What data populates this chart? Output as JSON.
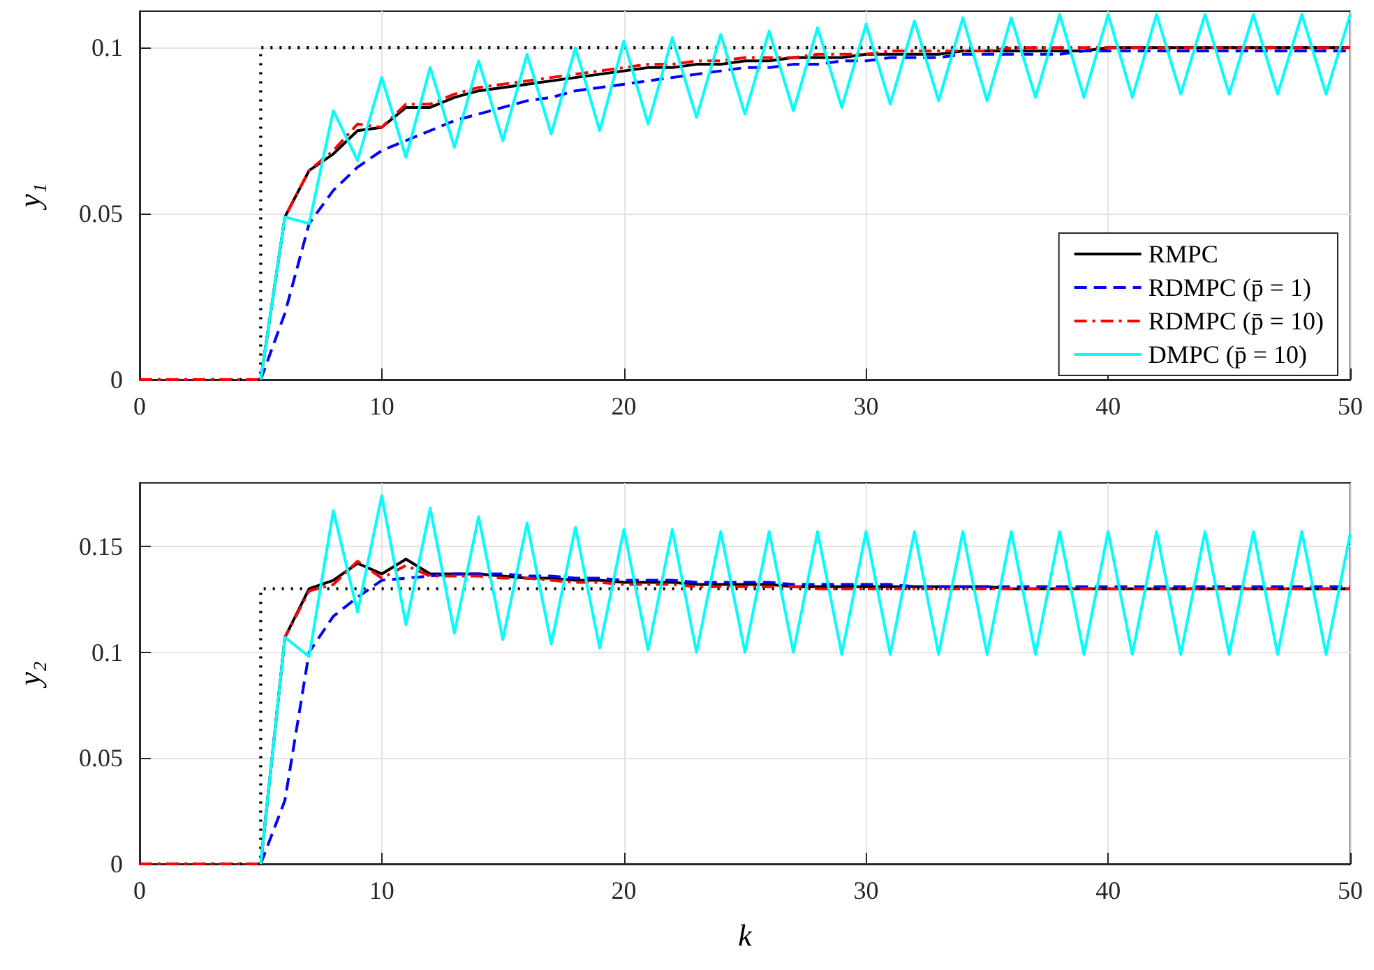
{
  "chart_data": [
    {
      "type": "line",
      "ylabel": "y₁",
      "xlim": [
        0,
        50
      ],
      "xticks": [
        0,
        10,
        20,
        30,
        40,
        50
      ],
      "ylim": [
        0,
        0.111
      ],
      "yticks": [
        0,
        0.05,
        0.1
      ],
      "grid": true,
      "legend": "bottom right",
      "marker": "none",
      "x": [
        0,
        1,
        2,
        3,
        4,
        5,
        6,
        7,
        8,
        9,
        10,
        11,
        12,
        13,
        14,
        15,
        16,
        17,
        18,
        19,
        20,
        21,
        22,
        23,
        24,
        25,
        26,
        27,
        28,
        29,
        30,
        31,
        32,
        33,
        34,
        35,
        36,
        37,
        38,
        39,
        40,
        41,
        42,
        43,
        44,
        45,
        46,
        47,
        48,
        49,
        50
      ],
      "series": [
        {
          "x": [
            0,
            5,
            5,
            50
          ],
          "values": [
            0,
            0,
            0.1,
            0.1
          ],
          "color": "#000000",
          "line_style": "dotted"
        },
        {
          "name": "RMPC",
          "color": "#000000",
          "line_style": "solid",
          "values": [
            null,
            null,
            null,
            null,
            null,
            0,
            0.049,
            0.063,
            0.068,
            0.075,
            0.076,
            0.082,
            0.082,
            0.085,
            0.087,
            0.088,
            0.089,
            0.09,
            0.091,
            0.092,
            0.093,
            0.094,
            0.094,
            0.095,
            0.095,
            0.096,
            0.096,
            0.097,
            0.097,
            0.097,
            0.098,
            0.098,
            0.098,
            0.098,
            0.099,
            0.099,
            0.099,
            0.099,
            0.099,
            0.099,
            0.1,
            0.1,
            0.1,
            0.1,
            0.1,
            0.1,
            0.1,
            0.1,
            0.1,
            0.1,
            0.1
          ]
        },
        {
          "name": "RDMPC (p̄ = 1)",
          "color": "#0000ff",
          "line_style": "dashed",
          "values": [
            null,
            null,
            null,
            null,
            null,
            0,
            0.02,
            0.047,
            0.057,
            0.064,
            0.069,
            0.072,
            0.075,
            0.078,
            0.08,
            0.082,
            0.084,
            0.085,
            0.087,
            0.088,
            0.089,
            0.09,
            0.091,
            0.092,
            0.093,
            0.094,
            0.094,
            0.095,
            0.095,
            0.096,
            0.096,
            0.097,
            0.097,
            0.097,
            0.098,
            0.098,
            0.098,
            0.098,
            0.098,
            0.099,
            0.099,
            0.099,
            0.099,
            0.099,
            0.099,
            0.099,
            0.099,
            0.099,
            0.099,
            0.099,
            0.099
          ]
        },
        {
          "name": "RDMPC (p̄ = 10)",
          "color": "#ff0000",
          "line_style": "dashdot",
          "values": [
            0,
            0,
            0,
            0,
            0,
            0,
            0.049,
            0.063,
            0.069,
            0.077,
            0.076,
            0.083,
            0.083,
            0.086,
            0.088,
            0.089,
            0.09,
            0.091,
            0.092,
            0.093,
            0.094,
            0.095,
            0.095,
            0.096,
            0.096,
            0.097,
            0.097,
            0.097,
            0.098,
            0.098,
            0.098,
            0.099,
            0.099,
            0.099,
            0.099,
            0.099,
            0.1,
            0.1,
            0.1,
            0.1,
            0.1,
            0.1,
            0.1,
            0.1,
            0.1,
            0.1,
            0.1,
            0.1,
            0.1,
            0.1,
            0.1
          ]
        },
        {
          "name": "DMPC (p̄ = 10)",
          "color": "#00ffff",
          "line_style": "solid",
          "values": [
            null,
            null,
            null,
            null,
            null,
            0,
            0.049,
            0.047,
            0.081,
            0.066,
            0.091,
            0.067,
            0.094,
            0.07,
            0.096,
            0.072,
            0.098,
            0.074,
            0.1,
            0.075,
            0.102,
            0.077,
            0.103,
            0.079,
            0.104,
            0.08,
            0.105,
            0.081,
            0.106,
            0.082,
            0.107,
            0.083,
            0.108,
            0.084,
            0.109,
            0.084,
            0.109,
            0.085,
            0.11,
            0.085,
            0.11,
            0.085,
            0.11,
            0.086,
            0.11,
            0.086,
            0.11,
            0.086,
            0.11,
            0.086,
            0.11
          ]
        }
      ]
    },
    {
      "type": "line",
      "xlabel": "k",
      "ylabel": "y₂",
      "xlim": [
        0,
        50
      ],
      "xticks": [
        0,
        10,
        20,
        30,
        40,
        50
      ],
      "ylim": [
        0,
        0.18
      ],
      "yticks": [
        0,
        0.05,
        0.1,
        0.15
      ],
      "grid": true,
      "marker": "none",
      "x": [
        0,
        1,
        2,
        3,
        4,
        5,
        6,
        7,
        8,
        9,
        10,
        11,
        12,
        13,
        14,
        15,
        16,
        17,
        18,
        19,
        20,
        21,
        22,
        23,
        24,
        25,
        26,
        27,
        28,
        29,
        30,
        31,
        32,
        33,
        34,
        35,
        36,
        37,
        38,
        39,
        40,
        41,
        42,
        43,
        44,
        45,
        46,
        47,
        48,
        49,
        50
      ],
      "series": [
        {
          "x": [
            0,
            5,
            5,
            50
          ],
          "values": [
            0,
            0,
            0.13,
            0.13
          ],
          "color": "#000000",
          "line_style": "dotted"
        },
        {
          "color": "#000000",
          "line_style": "solid",
          "values": [
            null,
            null,
            null,
            null,
            null,
            0,
            0.107,
            0.13,
            0.134,
            0.142,
            0.137,
            0.144,
            0.137,
            0.137,
            0.137,
            0.136,
            0.135,
            0.135,
            0.134,
            0.134,
            0.133,
            0.133,
            0.133,
            0.132,
            0.132,
            0.132,
            0.132,
            0.131,
            0.131,
            0.131,
            0.131,
            0.131,
            0.131,
            0.131,
            0.131,
            0.131,
            0.13,
            0.13,
            0.13,
            0.13,
            0.13,
            0.13,
            0.13,
            0.13,
            0.13,
            0.13,
            0.13,
            0.13,
            0.13,
            0.13,
            0.13
          ]
        },
        {
          "color": "#0000ff",
          "line_style": "dashed",
          "values": [
            null,
            null,
            null,
            null,
            null,
            0,
            0.03,
            0.1,
            0.117,
            0.126,
            0.134,
            0.135,
            0.136,
            0.137,
            0.137,
            0.137,
            0.136,
            0.136,
            0.135,
            0.135,
            0.134,
            0.134,
            0.134,
            0.133,
            0.133,
            0.133,
            0.133,
            0.132,
            0.132,
            0.132,
            0.132,
            0.132,
            0.131,
            0.131,
            0.131,
            0.131,
            0.131,
            0.131,
            0.131,
            0.131,
            0.131,
            0.131,
            0.131,
            0.131,
            0.131,
            0.131,
            0.131,
            0.131,
            0.131,
            0.131,
            0.131
          ]
        },
        {
          "color": "#ff0000",
          "line_style": "dashdot",
          "values": [
            0,
            0,
            0,
            0,
            0,
            0,
            0.107,
            0.129,
            0.132,
            0.143,
            0.135,
            0.141,
            0.136,
            0.136,
            0.136,
            0.135,
            0.135,
            0.134,
            0.133,
            0.133,
            0.132,
            0.132,
            0.132,
            0.131,
            0.131,
            0.131,
            0.131,
            0.131,
            0.13,
            0.13,
            0.13,
            0.13,
            0.13,
            0.13,
            0.13,
            0.13,
            0.13,
            0.13,
            0.13,
            0.13,
            0.13,
            0.13,
            0.13,
            0.13,
            0.13,
            0.13,
            0.13,
            0.13,
            0.13,
            0.13,
            0.13
          ]
        },
        {
          "color": "#00ffff",
          "line_style": "solid",
          "values": [
            null,
            null,
            null,
            null,
            null,
            0,
            0.107,
            0.098,
            0.167,
            0.119,
            0.174,
            0.113,
            0.168,
            0.109,
            0.164,
            0.106,
            0.161,
            0.104,
            0.159,
            0.102,
            0.158,
            0.101,
            0.158,
            0.1,
            0.157,
            0.1,
            0.157,
            0.1,
            0.157,
            0.099,
            0.157,
            0.099,
            0.157,
            0.099,
            0.157,
            0.099,
            0.157,
            0.099,
            0.157,
            0.099,
            0.157,
            0.099,
            0.157,
            0.099,
            0.157,
            0.099,
            0.157,
            0.099,
            0.157,
            0.099,
            0.156
          ]
        }
      ]
    }
  ]
}
